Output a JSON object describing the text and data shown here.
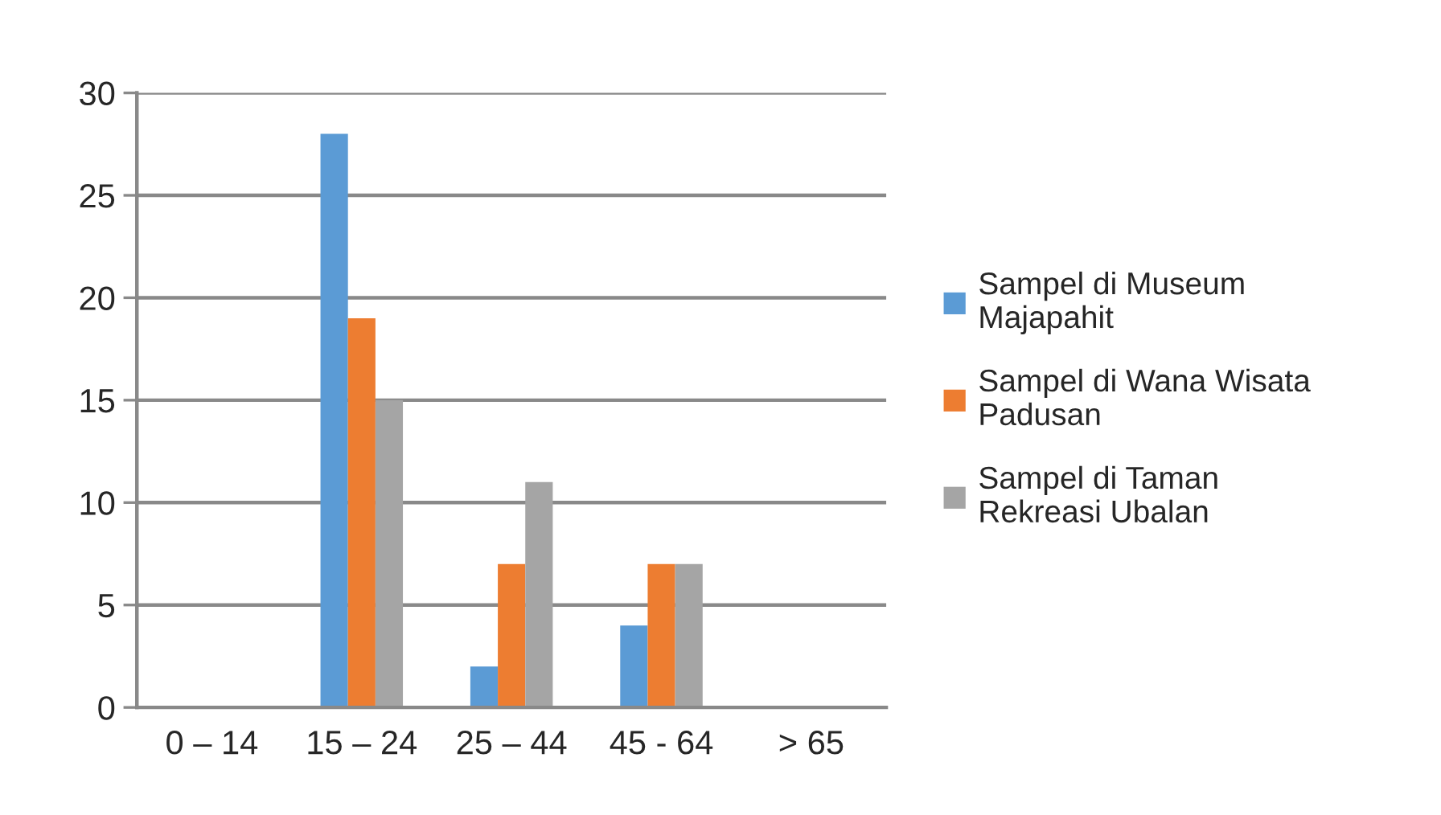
{
  "chart_data": {
    "type": "bar",
    "categories": [
      "0 – 14",
      "15 – 24",
      "25 – 44",
      "45 - 64",
      "> 65"
    ],
    "series": [
      {
        "name": "Sampel di Museum Majapahit",
        "color": "#5b9bd5",
        "values": [
          0,
          28,
          2,
          4,
          0
        ]
      },
      {
        "name": "Sampel di Wana Wisata Padusan",
        "color": "#ed7d31",
        "values": [
          0,
          19,
          7,
          7,
          0
        ]
      },
      {
        "name": "Sampel di Taman Rekreasi Ubalan",
        "color": "#a5a5a5",
        "values": [
          0,
          15,
          11,
          7,
          0
        ]
      }
    ],
    "ylim": [
      0,
      30
    ],
    "yticks": [
      0,
      5,
      10,
      15,
      20,
      25,
      30
    ],
    "grid": "y",
    "legend": "right"
  }
}
